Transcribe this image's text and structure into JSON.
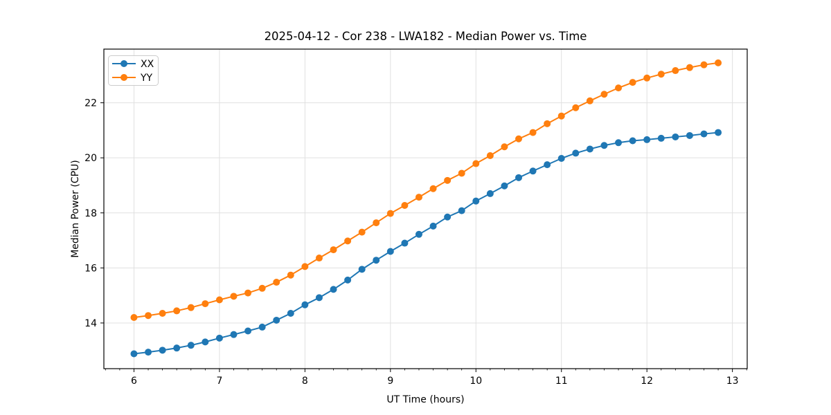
{
  "chart_data": {
    "type": "line",
    "title": "2025-04-12 - Cor 238 - LWA182 - Median Power vs. Time",
    "xlabel": "UT Time (hours)",
    "ylabel": "Median Power (CPU)",
    "xlim": [
      5.648,
      13.173
    ],
    "ylim": [
      12.34,
      23.95
    ],
    "x_major_ticks": [
      6,
      7,
      8,
      9,
      10,
      11,
      12,
      13
    ],
    "x_minor_step_hours": 0.166667,
    "y_major_ticks": [
      14,
      16,
      18,
      20,
      22
    ],
    "grid": "major-on-light-gray",
    "legend": {
      "position": "upper-left",
      "entries": [
        "XX",
        "YY"
      ]
    },
    "colors": {
      "XX": "#1f77b4",
      "YY": "#ff7f0e",
      "grid": "#e0e0e0",
      "spine": "#000000",
      "background": "#ffffff",
      "legend_border": "#cccccc"
    },
    "x": [
      6.0,
      6.1667,
      6.3333,
      6.5,
      6.6667,
      6.8333,
      7.0,
      7.1667,
      7.3333,
      7.5,
      7.6667,
      7.8333,
      8.0,
      8.1667,
      8.3333,
      8.5,
      8.6667,
      8.8333,
      9.0,
      9.1667,
      9.3333,
      9.5,
      9.6667,
      9.8333,
      10.0,
      10.1667,
      10.3333,
      10.5,
      10.6667,
      10.8333,
      11.0,
      11.1667,
      11.3333,
      11.5,
      11.6667,
      11.8333,
      12.0,
      12.1667,
      12.3333,
      12.5,
      12.6667,
      12.8333
    ],
    "series": [
      {
        "name": "XX",
        "color": "#1f77b4",
        "values": [
          12.88,
          12.94,
          13.01,
          13.09,
          13.19,
          13.31,
          13.45,
          13.58,
          13.71,
          13.85,
          14.1,
          14.35,
          14.66,
          14.92,
          15.22,
          15.56,
          15.95,
          16.28,
          16.6,
          16.9,
          17.22,
          17.52,
          17.85,
          18.08,
          18.43,
          18.7,
          18.98,
          19.28,
          19.52,
          19.75,
          19.98,
          20.17,
          20.32,
          20.45,
          20.55,
          20.62,
          20.66,
          20.71,
          20.76,
          20.81,
          20.87,
          20.92
        ]
      },
      {
        "name": "YY",
        "color": "#ff7f0e",
        "values": [
          14.2,
          14.27,
          14.35,
          14.44,
          14.56,
          14.7,
          14.84,
          14.97,
          15.09,
          15.26,
          15.48,
          15.74,
          16.05,
          16.36,
          16.66,
          16.98,
          17.3,
          17.64,
          17.98,
          18.27,
          18.57,
          18.88,
          19.18,
          19.44,
          19.79,
          20.08,
          20.4,
          20.69,
          20.92,
          21.24,
          21.52,
          21.82,
          22.07,
          22.31,
          22.54,
          22.74,
          22.9,
          23.04,
          23.17,
          23.28,
          23.38,
          23.45
        ]
      }
    ]
  }
}
